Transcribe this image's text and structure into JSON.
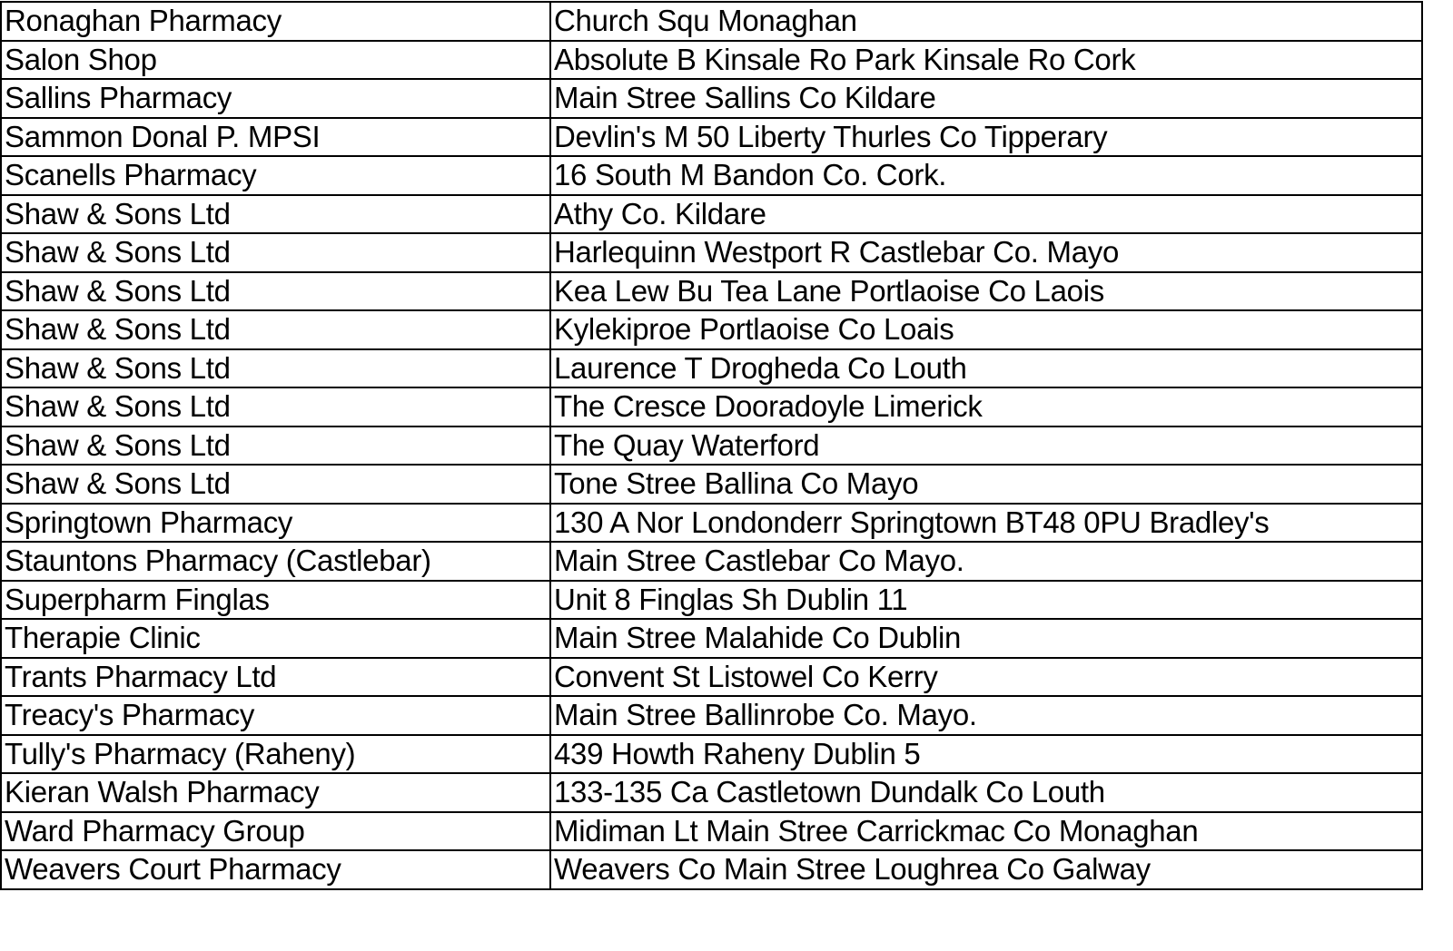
{
  "rows": [
    [
      "Ronaghan Pharmacy",
      "Church Squ Monaghan"
    ],
    [
      "Salon Shop",
      "Absolute B Kinsale Ro Park Kinsale Ro Cork"
    ],
    [
      "Sallins Pharmacy",
      "Main Stree Sallins Co Kildare"
    ],
    [
      "Sammon Donal P. MPSI",
      "Devlin's M 50 Liberty Thurles Co Tipperary"
    ],
    [
      "Scanells Pharmacy",
      "16 South M Bandon Co. Cork."
    ],
    [
      "Shaw & Sons Ltd",
      "Athy Co. Kildare"
    ],
    [
      "Shaw & Sons Ltd",
      "Harlequinn Westport R Castlebar Co. Mayo"
    ],
    [
      "Shaw & Sons Ltd",
      "Kea Lew Bu Tea Lane Portlaoise Co Laois"
    ],
    [
      "Shaw & Sons Ltd",
      "Kylekiproe Portlaoise Co Loais"
    ],
    [
      "Shaw & Sons Ltd",
      "Laurence T Drogheda Co Louth"
    ],
    [
      "Shaw & Sons Ltd",
      "The Cresce Dooradoyle Limerick"
    ],
    [
      "Shaw & Sons Ltd",
      "The Quay Waterford"
    ],
    [
      "Shaw & Sons Ltd",
      "Tone Stree Ballina Co Mayo"
    ],
    [
      "Springtown Pharmacy",
      "130 A  Nor Londonderr Springtown BT48 0PU Bradley's"
    ],
    [
      "Stauntons Pharmacy (Castlebar)",
      "Main Stree Castlebar Co Mayo."
    ],
    [
      "Superpharm Finglas",
      "Unit 8 Finglas Sh Dublin 11"
    ],
    [
      "Therapie Clinic",
      "Main Stree Malahide Co Dublin"
    ],
    [
      "Trants Pharmacy Ltd",
      "Convent St Listowel Co Kerry"
    ],
    [
      "Treacy's Pharmacy",
      "Main Stree Ballinrobe Co. Mayo."
    ],
    [
      "Tully's Pharmacy (Raheny)",
      "439 Howth Raheny Dublin 5"
    ],
    [
      "Kieran Walsh Pharmacy",
      "133-135 Ca Castletown Dundalk Co Louth"
    ],
    [
      "Ward Pharmacy Group",
      "Midiman Lt Main Stree Carrickmac Co Monaghan"
    ],
    [
      "Weavers Court Pharmacy",
      "Weavers Co Main Stree Loughrea Co Galway"
    ]
  ]
}
